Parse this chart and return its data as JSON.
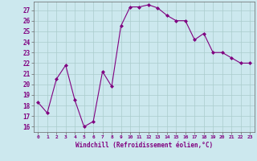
{
  "x": [
    0,
    1,
    2,
    3,
    4,
    5,
    6,
    7,
    8,
    9,
    10,
    11,
    12,
    13,
    14,
    15,
    16,
    17,
    18,
    19,
    20,
    21,
    22,
    23
  ],
  "y": [
    18.3,
    17.3,
    20.5,
    21.8,
    18.5,
    16.0,
    16.5,
    21.2,
    19.8,
    25.5,
    27.3,
    27.3,
    27.5,
    27.2,
    26.5,
    26.0,
    26.0,
    24.2,
    24.8,
    23.0,
    23.0,
    22.5,
    22.0,
    22.0
  ],
  "line_color": "#800080",
  "marker": "D",
  "marker_size": 2,
  "bg_color": "#cce8ee",
  "grid_color": "#aacccc",
  "xlabel": "Windchill (Refroidissement éolien,°C)",
  "xlabel_color": "#800080",
  "ylim": [
    15.5,
    27.8
  ],
  "xlim": [
    -0.5,
    23.5
  ],
  "yticks": [
    16,
    17,
    18,
    19,
    20,
    21,
    22,
    23,
    24,
    25,
    26,
    27
  ],
  "xticks": [
    0,
    1,
    2,
    3,
    4,
    5,
    6,
    7,
    8,
    9,
    10,
    11,
    12,
    13,
    14,
    15,
    16,
    17,
    18,
    19,
    20,
    21,
    22,
    23
  ]
}
